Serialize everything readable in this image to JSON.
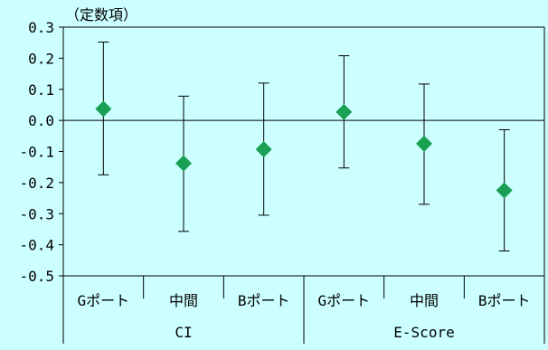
{
  "chart_data": {
    "type": "scatter",
    "title": "",
    "ylabel": "（定数項）",
    "xlabel": "",
    "ylim": [
      -0.5,
      0.3
    ],
    "ytick_step": 0.1,
    "ytick_labels": [
      "0.3",
      "0.2",
      "0.1",
      "0.0",
      "-0.1",
      "-0.2",
      "-0.3",
      "-0.4",
      "-0.5"
    ],
    "groups": [
      {
        "label": "CI",
        "categories": [
          "Gポート",
          "中間",
          "Bポート"
        ]
      },
      {
        "label": "E-Score",
        "categories": [
          "Gポート",
          "中間",
          "Bポート"
        ]
      }
    ],
    "points": [
      {
        "group": "CI",
        "category": "Gポート",
        "value": 0.037,
        "lower": -0.175,
        "upper": 0.252
      },
      {
        "group": "CI",
        "category": "中間",
        "value": -0.138,
        "lower": -0.357,
        "upper": 0.078
      },
      {
        "group": "CI",
        "category": "Bポート",
        "value": -0.093,
        "lower": -0.305,
        "upper": 0.12
      },
      {
        "group": "E-Score",
        "category": "Gポート",
        "value": 0.027,
        "lower": -0.153,
        "upper": 0.208
      },
      {
        "group": "E-Score",
        "category": "中間",
        "value": -0.075,
        "lower": -0.27,
        "upper": 0.117
      },
      {
        "group": "E-Score",
        "category": "Bポート",
        "value": -0.225,
        "lower": -0.42,
        "upper": -0.03
      }
    ],
    "marker_color": "#1aa055",
    "error_bar_color": "#000000",
    "zero_line": true,
    "grid": false,
    "legend": "none"
  }
}
